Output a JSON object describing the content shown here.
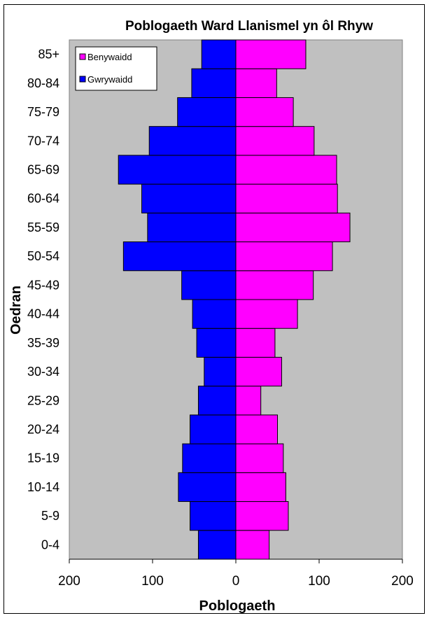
{
  "chart_data": {
    "type": "bar",
    "orientation": "horizontal",
    "subtype": "population-pyramid",
    "title": "Poblogaeth Ward Llanismel yn ôl Rhyw",
    "xlabel": "Poblogaeth",
    "ylabel": "Oedran",
    "xlim": [
      -200,
      200
    ],
    "x_ticks": [
      -200,
      -100,
      0,
      100,
      200
    ],
    "x_tick_labels": [
      "200",
      "100",
      "0",
      "100",
      "200"
    ],
    "categories": [
      "0-4",
      "5-9",
      "10-14",
      "15-19",
      "20-24",
      "25-29",
      "30-34",
      "35-39",
      "40-44",
      "45-49",
      "50-54",
      "55-59",
      "60-64",
      "65-69",
      "70-74",
      "75-79",
      "80-84",
      "85+"
    ],
    "series": [
      {
        "name": "Benywaidd",
        "color": "#ff00ff",
        "side": "right",
        "values": [
          40,
          63,
          60,
          57,
          50,
          30,
          55,
          47,
          74,
          93,
          116,
          137,
          122,
          121,
          94,
          69,
          49,
          84
        ]
      },
      {
        "name": "Gwrywaidd",
        "color": "#0000ff",
        "side": "left",
        "values": [
          45,
          55,
          69,
          64,
          55,
          45,
          38,
          47,
          52,
          65,
          135,
          106,
          113,
          141,
          104,
          70,
          53,
          41
        ]
      }
    ],
    "legend_position": "top-left",
    "plot_background": "#c0c0c0",
    "grid": false
  }
}
